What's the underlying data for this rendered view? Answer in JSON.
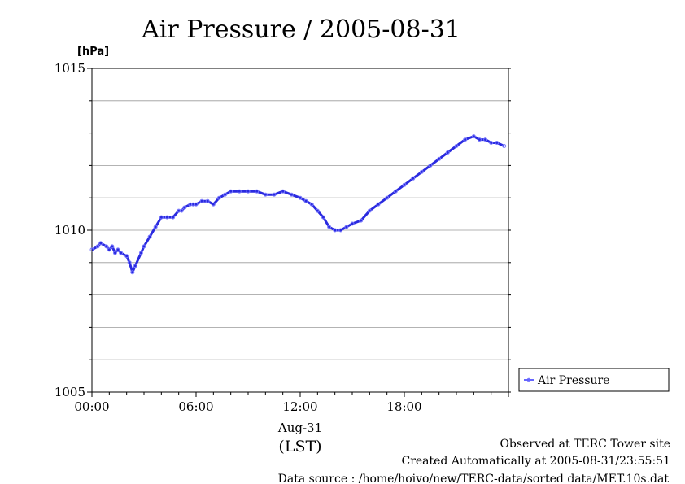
{
  "chart_data": {
    "type": "line",
    "title": "Air Pressure / 2005-08-31",
    "ylabel": "[hPa]",
    "xlabel": "(LST)",
    "date_label": "Aug-31",
    "ylim": [
      1005,
      1015
    ],
    "xlim": [
      "2005-08-31 00:00",
      "2005-09-01 00:00"
    ],
    "y_ticks": [
      "1015",
      "1010",
      "1005"
    ],
    "x_ticks": [
      "00:00",
      "06:00",
      "12:00",
      "18:00"
    ],
    "grid": true,
    "legend_position": "right",
    "series": [
      {
        "name": "Air Pressure",
        "color": "#3333ff",
        "x": [
          "00:00",
          "00:20",
          "00:30",
          "00:50",
          "01:00",
          "01:10",
          "01:20",
          "01:30",
          "01:40",
          "02:00",
          "02:10",
          "02:20",
          "02:30",
          "02:50",
          "03:00",
          "03:20",
          "03:40",
          "04:00",
          "04:20",
          "04:40",
          "05:00",
          "05:10",
          "05:20",
          "05:40",
          "05:50",
          "06:00",
          "06:20",
          "06:40",
          "07:00",
          "07:20",
          "07:40",
          "08:00",
          "08:30",
          "09:00",
          "09:30",
          "10:00",
          "10:30",
          "11:00",
          "11:30",
          "12:00",
          "12:20",
          "12:40",
          "13:00",
          "13:20",
          "13:40",
          "14:00",
          "14:20",
          "14:40",
          "15:00",
          "15:30",
          "16:00",
          "16:30",
          "17:00",
          "17:30",
          "18:00",
          "18:30",
          "19:00",
          "19:30",
          "20:00",
          "20:30",
          "21:00",
          "21:30",
          "22:00",
          "22:20",
          "22:40",
          "23:00",
          "23:20",
          "23:45"
        ],
        "values": [
          1009.4,
          1009.5,
          1009.6,
          1009.5,
          1009.4,
          1009.5,
          1009.3,
          1009.4,
          1009.3,
          1009.2,
          1009.0,
          1008.7,
          1008.9,
          1009.3,
          1009.5,
          1009.8,
          1010.1,
          1010.4,
          1010.4,
          1010.4,
          1010.6,
          1010.6,
          1010.7,
          1010.8,
          1010.8,
          1010.8,
          1010.9,
          1010.9,
          1010.8,
          1011.0,
          1011.1,
          1011.2,
          1011.2,
          1011.2,
          1011.2,
          1011.1,
          1011.1,
          1011.2,
          1011.1,
          1011.0,
          1010.9,
          1010.8,
          1010.6,
          1010.4,
          1010.1,
          1010.0,
          1010.0,
          1010.1,
          1010.2,
          1010.3,
          1010.6,
          1010.8,
          1011.0,
          1011.2,
          1011.4,
          1011.6,
          1011.8,
          1012.0,
          1012.2,
          1012.4,
          1012.6,
          1012.8,
          1012.9,
          1012.8,
          1012.8,
          1012.7,
          1012.7,
          1012.6
        ]
      }
    ]
  },
  "footer": {
    "line1": "Observed at TERC Tower site",
    "line2": "Created Automatically at 2005-08-31/23:55:51",
    "line3": "Data source : /home/hoivo/new/TERC-data/sorted  data/MET.10s.dat"
  }
}
